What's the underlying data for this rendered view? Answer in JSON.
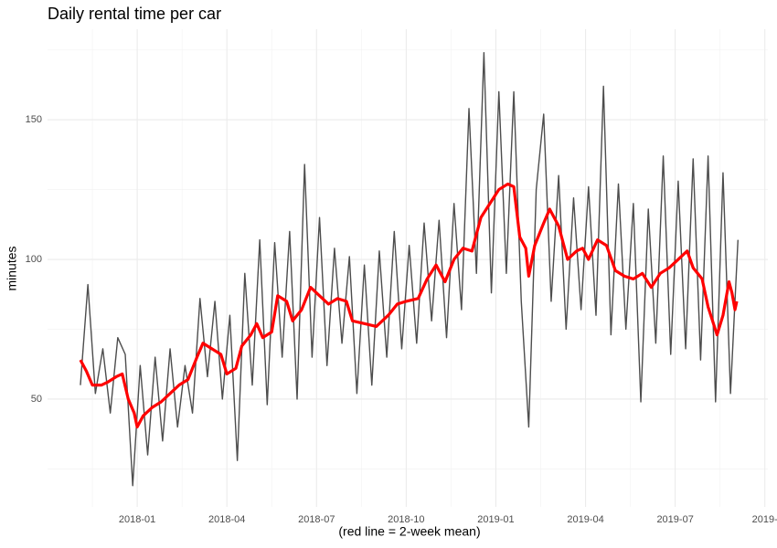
{
  "chart_data": {
    "type": "line",
    "title": "Daily rental time per car",
    "x_label": "(red line = 2-week mean)",
    "y_label": "minutes",
    "xlim": [
      -3.0,
      21.1
    ],
    "ylim": [
      11.4,
      182.4
    ],
    "xticks": [
      {
        "value": 0,
        "label": "2018-01"
      },
      {
        "value": 3,
        "label": "2018-04"
      },
      {
        "value": 6,
        "label": "2018-07"
      },
      {
        "value": 9,
        "label": "2018-10"
      },
      {
        "value": 12,
        "label": "2019-01"
      },
      {
        "value": 15,
        "label": "2019-04"
      },
      {
        "value": 18,
        "label": "2019-07"
      },
      {
        "value": 21,
        "label": "2019-"
      }
    ],
    "yticks": [
      50,
      100,
      150
    ],
    "grid": true,
    "series": [
      {
        "color": "#4d4d4d",
        "width": 1.4,
        "x": [
          -1.9,
          -1.65,
          -1.4,
          -1.15,
          -0.9,
          -0.65,
          -0.4,
          -0.15,
          0.1,
          0.35,
          0.6,
          0.85,
          1.1,
          1.35,
          1.6,
          1.85,
          2.1,
          2.35,
          2.6,
          2.85,
          3.1,
          3.35,
          3.6,
          3.85,
          4.1,
          4.35,
          4.6,
          4.85,
          5.1,
          5.35,
          5.6,
          5.85,
          6.1,
          6.35,
          6.6,
          6.85,
          7.1,
          7.35,
          7.6,
          7.85,
          8.1,
          8.35,
          8.6,
          8.85,
          9.1,
          9.35,
          9.6,
          9.85,
          10.1,
          10.35,
          10.6,
          10.85,
          11.1,
          11.35,
          11.6,
          11.85,
          12.1,
          12.35,
          12.6,
          12.85,
          13.1,
          13.35,
          13.6,
          13.85,
          14.1,
          14.35,
          14.6,
          14.85,
          15.1,
          15.35,
          15.6,
          15.85,
          16.1,
          16.35,
          16.6,
          16.85,
          17.1,
          17.35,
          17.6,
          17.85,
          18.1,
          18.35,
          18.6,
          18.85,
          19.1,
          19.35,
          19.6,
          19.85,
          20.1
        ],
        "values": [
          55,
          91,
          52,
          68,
          45,
          72,
          66,
          19,
          62,
          30,
          65,
          35,
          68,
          40,
          62,
          45,
          86,
          58,
          85,
          50,
          80,
          28,
          95,
          55,
          107,
          48,
          106,
          65,
          110,
          50,
          134,
          65,
          115,
          62,
          104,
          70,
          101,
          52,
          98,
          55,
          103,
          65,
          110,
          68,
          105,
          70,
          113,
          78,
          114,
          72,
          120,
          82,
          154,
          95,
          174,
          88,
          160,
          95,
          160,
          85,
          40,
          125,
          152,
          85,
          130,
          75,
          122,
          82,
          126,
          80,
          162,
          73,
          127,
          75,
          120,
          49,
          118,
          70,
          137,
          66,
          128,
          68,
          136,
          64,
          137,
          49,
          131,
          52,
          107
        ]
      },
      {
        "color": "#ff0000",
        "width": 3.2,
        "x": [
          -1.9,
          -1.7,
          -1.5,
          -1.2,
          -1.0,
          -0.7,
          -0.5,
          -0.3,
          -0.1,
          0.0,
          0.2,
          0.5,
          0.8,
          1.1,
          1.4,
          1.7,
          2.0,
          2.2,
          2.5,
          2.8,
          3.0,
          3.3,
          3.5,
          3.8,
          4.0,
          4.2,
          4.5,
          4.7,
          5.0,
          5.2,
          5.5,
          5.8,
          6.1,
          6.4,
          6.7,
          7.0,
          7.2,
          7.6,
          8.0,
          8.4,
          8.7,
          9.0,
          9.4,
          9.7,
          10.0,
          10.3,
          10.6,
          10.9,
          11.2,
          11.5,
          11.8,
          12.1,
          12.4,
          12.6,
          12.8,
          13.0,
          13.1,
          13.3,
          13.6,
          13.8,
          14.1,
          14.4,
          14.7,
          14.9,
          15.1,
          15.4,
          15.7,
          16.0,
          16.3,
          16.6,
          16.9,
          17.2,
          17.5,
          17.8,
          18.1,
          18.4,
          18.6,
          18.9,
          19.1,
          19.4,
          19.6,
          19.8,
          19.9,
          20.0,
          20.06
        ],
        "values": [
          64,
          60,
          55,
          55,
          56,
          58,
          59,
          50,
          45,
          40,
          44,
          47,
          49,
          52,
          55,
          57,
          65,
          70,
          68,
          66,
          59,
          61,
          69,
          73,
          77,
          72,
          74,
          87,
          85,
          78,
          82,
          90,
          87,
          84,
          86,
          85,
          78,
          77,
          76,
          80,
          84,
          85,
          86,
          93,
          98,
          92,
          100,
          104,
          103,
          115,
          120,
          125,
          127,
          126,
          108,
          104,
          94,
          105,
          113,
          118,
          112,
          100,
          103,
          104,
          100,
          107,
          105,
          96,
          94,
          93,
          95,
          90,
          95,
          97,
          100,
          103,
          97,
          93,
          83,
          73,
          80,
          92,
          88,
          82,
          85
        ]
      }
    ]
  }
}
